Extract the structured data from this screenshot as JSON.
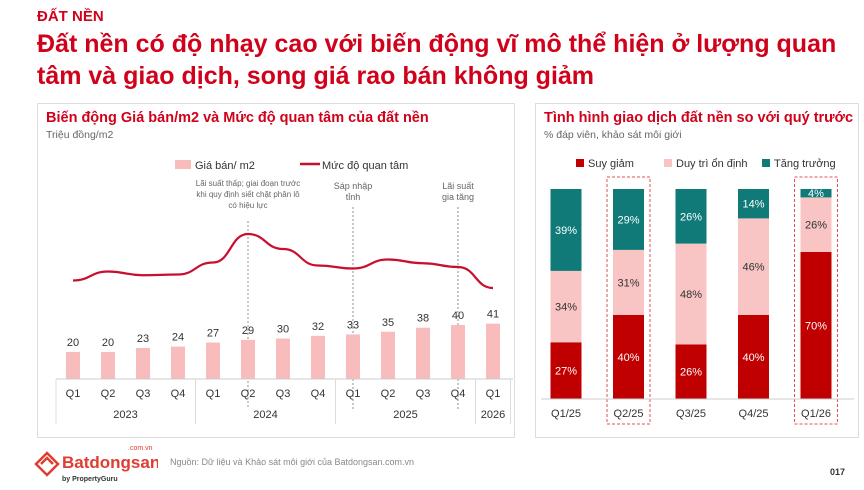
{
  "header": {
    "kicker": "ĐẤT NỀN",
    "headline": "Đất nền có độ nhạy cao với biến động vĩ mô thể hiện ở lượng quan tâm và giao dịch, song giá rao bán không giảm"
  },
  "chart_data": [
    {
      "type": "bar+line",
      "title": "Biến động Giá bán/m2 và Mức độ quan tâm của đất nền",
      "subtitle": "Triệu đồng/m2",
      "legend": [
        "Giá bán/ m2",
        "Mức độ quan tâm"
      ],
      "legend_placement": "top",
      "categories": [
        "Q1",
        "Q2",
        "Q3",
        "Q4",
        "Q1",
        "Q2",
        "Q3",
        "Q4",
        "Q1",
        "Q2",
        "Q3",
        "Q4",
        "Q1"
      ],
      "years": [
        {
          "label": "2023",
          "span": 4
        },
        {
          "label": "2024",
          "span": 4
        },
        {
          "label": "2025",
          "span": 4
        },
        {
          "label": "2026",
          "span": 1
        }
      ],
      "series": [
        {
          "name": "Giá bán/ m2",
          "type": "bar",
          "color": "#f8bcbc",
          "values": [
            20,
            20,
            23,
            24,
            27,
            29,
            30,
            32,
            33,
            35,
            38,
            40,
            41
          ]
        },
        {
          "name": "Mức độ quan tâm",
          "type": "line",
          "color": "#c8102e",
          "values": [
            18,
            30,
            25,
            26,
            42,
            80,
            60,
            38,
            34,
            46,
            41,
            36,
            8
          ]
        }
      ],
      "annotations": [
        {
          "index": 5,
          "text": [
            "Lãi suất thấp; giai đoạn trước",
            "khi quy định siết chặt phân lô",
            "có hiệu lực"
          ]
        },
        {
          "index": 8,
          "text": [
            "Sáp nhập",
            "tỉnh"
          ]
        },
        {
          "index": 11,
          "text": [
            "Lãi suất",
            "gia tăng"
          ]
        }
      ]
    },
    {
      "type": "stacked-bar",
      "title": "Tình hình giao dịch đất nền so với quý trước",
      "subtitle": "% đáp viên, khảo sát môi giới",
      "legend_placement": "top",
      "categories": [
        "Q1/25",
        "Q2/25",
        "Q3/25",
        "Q4/25",
        "Q1/26"
      ],
      "highlighted": [
        "Q2/25",
        "Q1/26"
      ],
      "series": [
        {
          "name": "Suy giảm",
          "color": "#c00000",
          "text_color": "#ffffff",
          "values": [
            27,
            40,
            26,
            40,
            70
          ]
        },
        {
          "name": "Duy trì ổn định",
          "color": "#f8c4c4",
          "text_color": "#333333",
          "values": [
            34,
            31,
            48,
            46,
            26
          ]
        },
        {
          "name": "Tăng trưởng",
          "color": "#0f7a78",
          "text_color": "#ffffff",
          "values": [
            39,
            29,
            26,
            14,
            4
          ]
        }
      ]
    }
  ],
  "footer": {
    "source": "Nguồn: Dữ liệu và Khảo sát môi giới của Batdongsan.com.vn",
    "page": "017",
    "logo_text": "Batdongsan",
    "logo_domain": ".com.vn",
    "logo_by": "by PropertyGuru"
  }
}
